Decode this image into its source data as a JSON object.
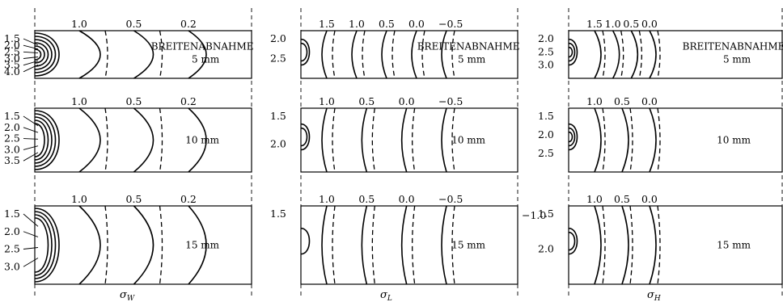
{
  "columns": [
    {
      "axis_label": "σW",
      "axis_main": "σ",
      "axis_sub": "W",
      "panels": [
        {
          "caption_main": "BREITENABNAHME",
          "caption_size": "5 mm",
          "top_labels": [
            "1.0",
            "0.5",
            "0.2"
          ],
          "left_labels": [
            "1.5",
            "2.0",
            "2.5",
            "3.0",
            "3.5",
            "4.0"
          ],
          "right_labels": []
        },
        {
          "caption_main": "",
          "caption_size": "10 mm",
          "top_labels": [
            "1.0",
            "0.5",
            "0.2"
          ],
          "left_labels": [
            "1.5",
            "2.0",
            "2.5",
            "3.0",
            "3.5"
          ],
          "right_labels": []
        },
        {
          "caption_main": "",
          "caption_size": "15 mm",
          "top_labels": [
            "1.0",
            "0.5",
            "0.2"
          ],
          "left_labels": [
            "1.5",
            "2.0",
            "2.5",
            "3.0"
          ],
          "right_labels": []
        }
      ]
    },
    {
      "axis_label": "σL",
      "axis_main": "σ",
      "axis_sub": "L",
      "panels": [
        {
          "caption_main": "BREITENABNAHME",
          "caption_size": "5 mm",
          "top_labels": [
            "1.5",
            "1.0",
            "0.5",
            "0.0",
            "−0.5"
          ],
          "left_labels": [
            "2.0",
            "2.5"
          ],
          "right_labels": []
        },
        {
          "caption_main": "",
          "caption_size": "10 mm",
          "top_labels": [
            "1.0",
            "0.5",
            "0.0",
            "−0.5"
          ],
          "left_labels": [
            "1.5",
            "2.0"
          ],
          "right_labels": []
        },
        {
          "caption_main": "",
          "caption_size": "15 mm",
          "top_labels": [
            "1.0",
            "0.5",
            "0.0",
            "−0.5"
          ],
          "left_labels": [
            "1.5"
          ],
          "right_labels": [
            "−1.0"
          ]
        }
      ]
    },
    {
      "axis_label": "σH",
      "axis_main": "σ",
      "axis_sub": "H",
      "panels": [
        {
          "caption_main": "BREITENABNAHME",
          "caption_size": "5 mm",
          "top_labels": [
            "1.5",
            "1.0",
            "0.5",
            "0.0"
          ],
          "left_labels": [
            "2.0",
            "2.5",
            "3.0"
          ],
          "right_labels": []
        },
        {
          "caption_main": "",
          "caption_size": "10 mm",
          "top_labels": [
            "1.0",
            "0.5",
            "0.0"
          ],
          "left_labels": [
            "1.5",
            "2.0",
            "2.5"
          ],
          "right_labels": []
        },
        {
          "caption_main": "",
          "caption_size": "15 mm",
          "top_labels": [
            "1.0",
            "0.5",
            "0.0"
          ],
          "left_labels": [
            "1.5",
            "2.0"
          ],
          "right_labels": []
        }
      ]
    }
  ]
}
